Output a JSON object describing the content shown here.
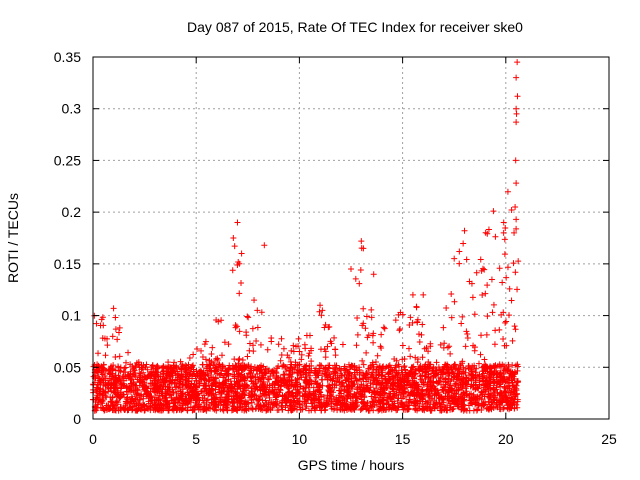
{
  "chart_data": {
    "type": "scatter",
    "title": "Day 087 of 2015, Rate Of TEC Index for receiver ske0",
    "xlabel": "GPS time / hours",
    "ylabel": "ROTI / TECUs",
    "xlim": [
      0,
      25
    ],
    "ylim": [
      0,
      0.35
    ],
    "xticks": [
      0,
      5,
      10,
      15,
      20,
      25
    ],
    "yticks": [
      0,
      0.05,
      0.1,
      0.15,
      0.2,
      0.25,
      0.3,
      0.35
    ],
    "ytick_labels": [
      "0",
      "0.05",
      "0.1",
      "0.15",
      "0.2",
      "0.25",
      "0.3",
      "0.35"
    ],
    "xtick_labels": [
      "0",
      "5",
      "10",
      "15",
      "20",
      "25"
    ],
    "grid": true,
    "marker": "+",
    "series_color": "#ff0000",
    "x_data_end": 20.6,
    "envelope": [
      [
        0.0,
        0.1
      ],
      [
        0.5,
        0.09
      ],
      [
        1.0,
        0.1
      ],
      [
        1.5,
        0.07
      ],
      [
        2.0,
        0.05
      ],
      [
        2.5,
        0.045
      ],
      [
        3.0,
        0.045
      ],
      [
        3.5,
        0.05
      ],
      [
        4.0,
        0.05
      ],
      [
        4.5,
        0.05
      ],
      [
        5.0,
        0.06
      ],
      [
        5.5,
        0.07
      ],
      [
        6.0,
        0.1
      ],
      [
        6.5,
        0.11
      ],
      [
        7.0,
        0.19
      ],
      [
        7.5,
        0.1
      ],
      [
        8.0,
        0.14
      ],
      [
        8.5,
        0.09
      ],
      [
        9.0,
        0.07
      ],
      [
        9.5,
        0.07
      ],
      [
        10.0,
        0.07
      ],
      [
        10.5,
        0.09
      ],
      [
        11.0,
        0.11
      ],
      [
        11.5,
        0.08
      ],
      [
        12.0,
        0.09
      ],
      [
        12.5,
        0.1
      ],
      [
        13.0,
        0.17
      ],
      [
        13.5,
        0.1
      ],
      [
        14.0,
        0.08
      ],
      [
        14.5,
        0.09
      ],
      [
        15.0,
        0.1
      ],
      [
        15.5,
        0.12
      ],
      [
        16.0,
        0.09
      ],
      [
        16.5,
        0.1
      ],
      [
        17.0,
        0.09
      ],
      [
        17.5,
        0.14
      ],
      [
        18.0,
        0.18
      ],
      [
        18.5,
        0.14
      ],
      [
        19.0,
        0.18
      ],
      [
        19.5,
        0.2
      ],
      [
        20.0,
        0.18
      ],
      [
        20.5,
        0.34
      ]
    ],
    "outliers": [
      [
        20.55,
        0.345
      ],
      [
        20.5,
        0.33
      ],
      [
        20.5,
        0.3
      ],
      [
        20.52,
        0.295
      ],
      [
        20.5,
        0.287
      ],
      [
        20.48,
        0.25
      ],
      [
        20.5,
        0.228
      ],
      [
        20.45,
        0.205
      ],
      [
        20.5,
        0.193
      ],
      [
        20.4,
        0.18
      ],
      [
        19.9,
        0.19
      ],
      [
        19.4,
        0.201
      ],
      [
        7.0,
        0.19
      ],
      [
        6.8,
        0.175
      ],
      [
        7.2,
        0.16
      ],
      [
        8.3,
        0.168
      ],
      [
        13.0,
        0.172
      ],
      [
        13.1,
        0.165
      ],
      [
        12.5,
        0.145
      ],
      [
        18.0,
        0.182
      ],
      [
        17.5,
        0.155
      ],
      [
        16.0,
        0.12
      ],
      [
        11.0,
        0.11
      ],
      [
        13.6,
        0.14
      ],
      [
        15.5,
        0.12
      ]
    ]
  }
}
